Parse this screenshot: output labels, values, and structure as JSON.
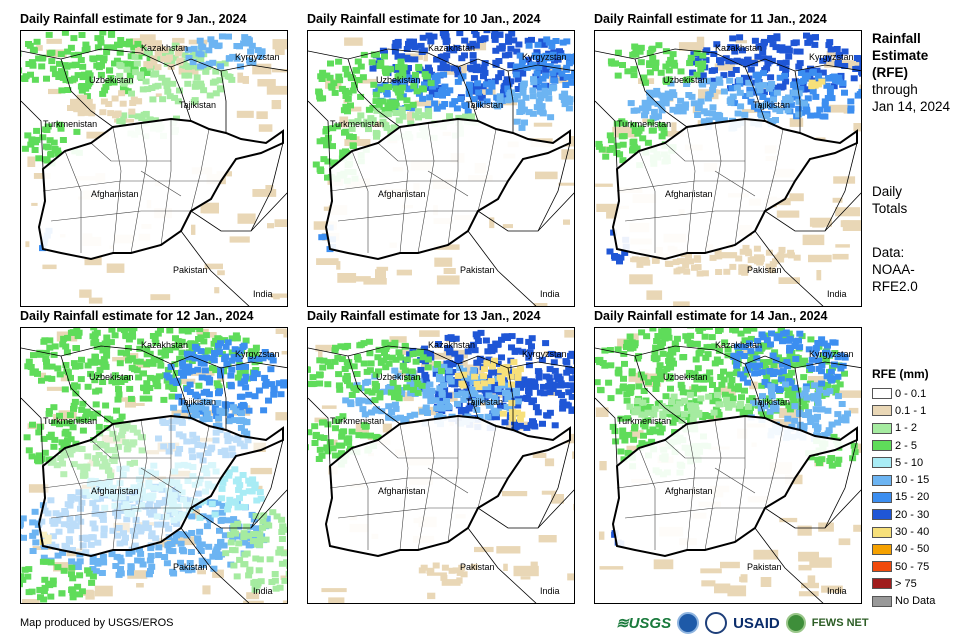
{
  "panels": [
    {
      "title": "Daily Rainfall estimate for 9 Jan., 2024",
      "pattern": 0
    },
    {
      "title": "Daily Rainfall estimate for 10 Jan., 2024",
      "pattern": 1
    },
    {
      "title": "Daily Rainfall estimate for 11 Jan., 2024",
      "pattern": 2
    },
    {
      "title": "Daily Rainfall estimate for 12 Jan., 2024",
      "pattern": 3
    },
    {
      "title": "Daily Rainfall estimate for 13 Jan., 2024",
      "pattern": 4
    },
    {
      "title": "Daily Rainfall estimate for 14 Jan., 2024",
      "pattern": 5
    }
  ],
  "map_labels": {
    "kazakhstan": "Kazakhstan",
    "kyrgyzstan": "Kyrgyzstan",
    "uzbekistan": "Uzbekistan",
    "tajikistan": "Tajikistan",
    "turkmenistan": "Turkmenistan",
    "afghanistan": "Afghanistan",
    "pakistan": "Pakistan",
    "india": "India"
  },
  "side": {
    "title_line1": "Rainfall",
    "title_line2": "Estimate",
    "title_line3": "(RFE)",
    "through": "through",
    "date": "Jan 14, 2024",
    "daily1": "Daily",
    "daily2": "Totals",
    "data1": "Data:",
    "data2": "NOAA-",
    "data3": "RFE2.0"
  },
  "legend": {
    "title": "RFE (mm)",
    "items": [
      {
        "label": "0 - 0.1",
        "color": "#ffffff"
      },
      {
        "label": "0.1 - 1",
        "color": "#e9d7b6"
      },
      {
        "label": "1 - 2",
        "color": "#a5eba0"
      },
      {
        "label": "2 - 5",
        "color": "#5fdc5a"
      },
      {
        "label": "5 - 10",
        "color": "#a9ecf5"
      },
      {
        "label": "10 - 15",
        "color": "#6cb4f2"
      },
      {
        "label": "15 - 20",
        "color": "#3c8ef0"
      },
      {
        "label": "20 - 30",
        "color": "#1f56d6"
      },
      {
        "label": "30 - 40",
        "color": "#f7e07a"
      },
      {
        "label": "40 - 50",
        "color": "#f5a100"
      },
      {
        "label": "50 - 75",
        "color": "#f04a0c"
      },
      {
        "label": "> 75",
        "color": "#a01c1c"
      },
      {
        "label": "No Data",
        "color": "#999999"
      }
    ]
  },
  "footer": {
    "credit": "Map produced by USGS/EROS",
    "logo_usgs": "≋USGS",
    "logo_usaid": "USAID",
    "logo_fews": "FEWS NET"
  }
}
